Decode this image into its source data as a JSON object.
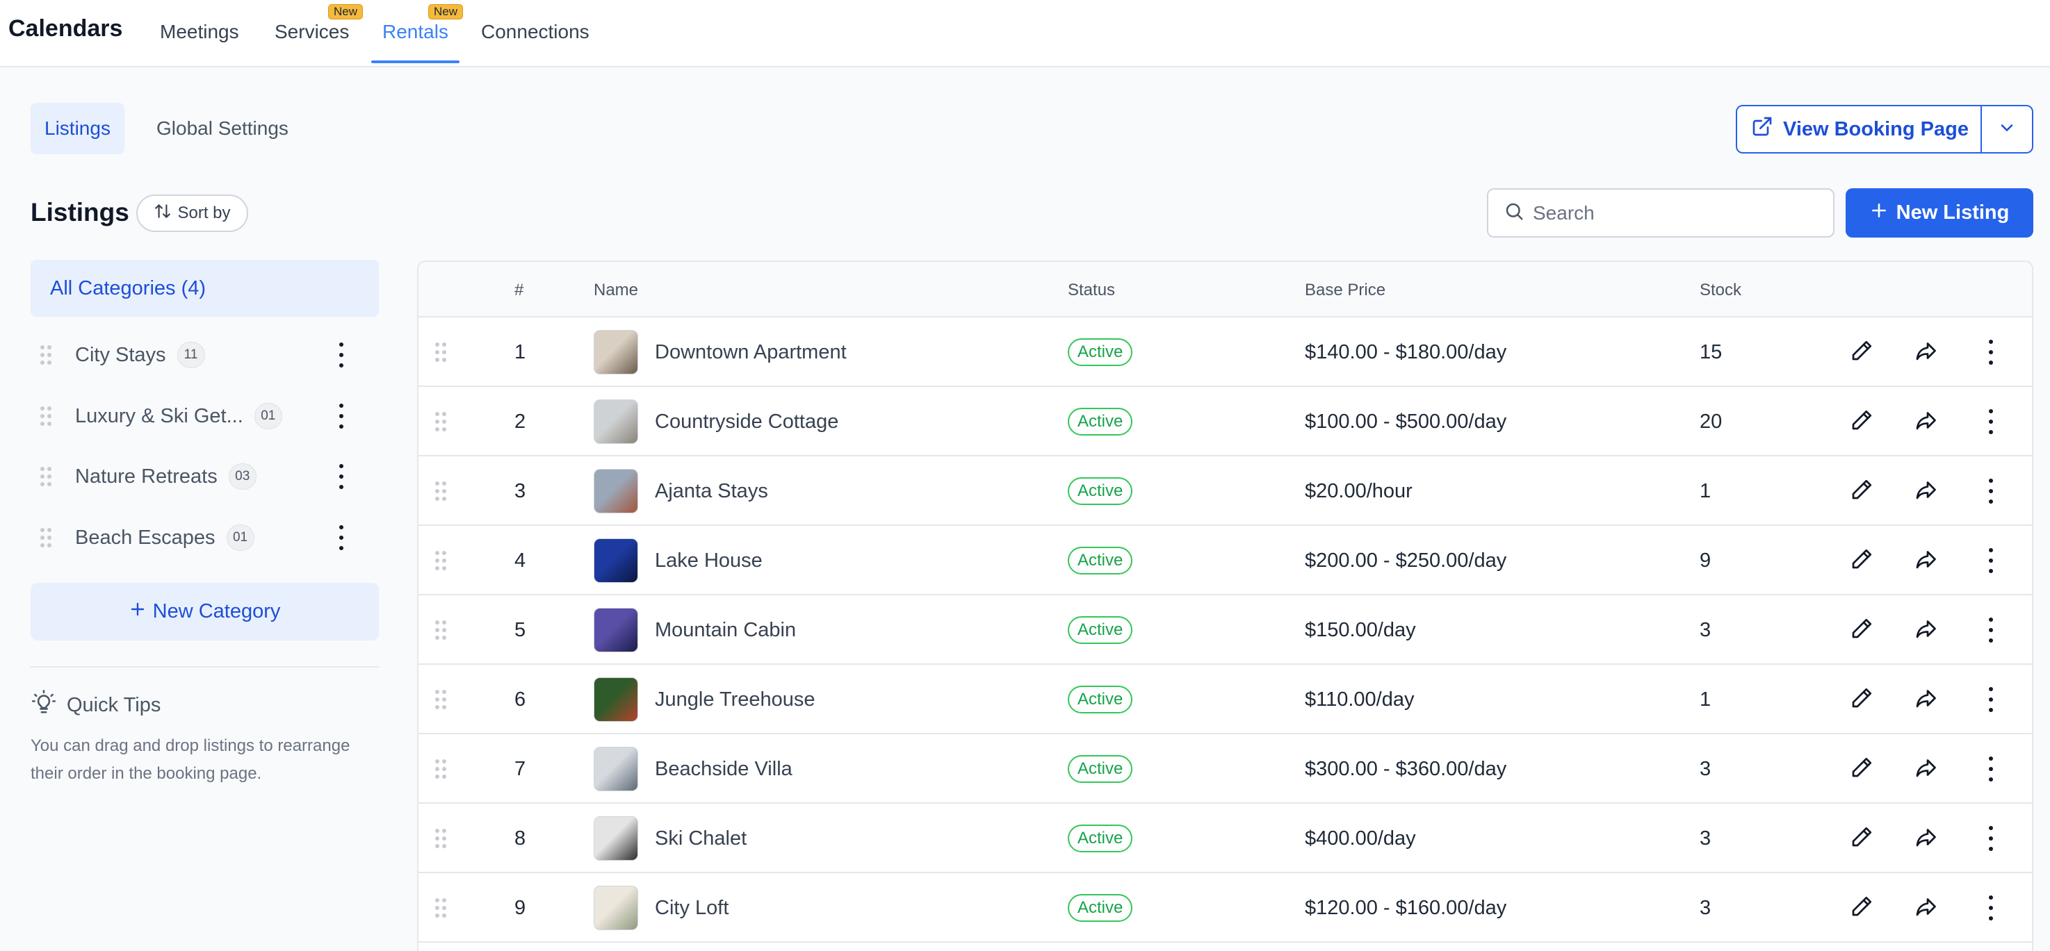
{
  "header": {
    "app_title": "Calendars",
    "tabs": [
      {
        "label": "Meetings",
        "badge": ""
      },
      {
        "label": "Services",
        "badge": "New"
      },
      {
        "label": "Rentals",
        "badge": "New",
        "active": true
      },
      {
        "label": "Connections",
        "badge": ""
      }
    ]
  },
  "subtabs": [
    "Listings",
    "Global Settings"
  ],
  "view_booking": {
    "label": "View Booking Page"
  },
  "listings": {
    "title": "Listings",
    "sort_label": "Sort by",
    "search_placeholder": "Search",
    "new_listing_label": "New Listing"
  },
  "categories": {
    "all_label": "All Categories (4)",
    "items": [
      {
        "name": "City Stays",
        "count": "11"
      },
      {
        "name": "Luxury & Ski Get...",
        "count": "01"
      },
      {
        "name": "Nature Retreats",
        "count": "03"
      },
      {
        "name": "Beach Escapes",
        "count": "01"
      }
    ],
    "new_category_label": "New Category"
  },
  "tips": {
    "title": "Quick Tips",
    "text": "You can drag and drop listings to rearrange their order in the booking page."
  },
  "table": {
    "columns": [
      "#",
      "Name",
      "Status",
      "Base Price",
      "Stock"
    ],
    "rows": [
      {
        "num": "1",
        "name": "Downtown Apartment",
        "status": "Active",
        "price": "$140.00 - $180.00/day",
        "stock": "15",
        "thumb_colors": [
          "#d9cfc2",
          "#6b5b4a"
        ]
      },
      {
        "num": "2",
        "name": "Countryside Cottage",
        "status": "Active",
        "price": "$100.00 - $500.00/day",
        "stock": "20",
        "thumb_colors": [
          "#cfd2d4",
          "#8a8479"
        ]
      },
      {
        "num": "3",
        "name": "Ajanta Stays",
        "status": "Active",
        "price": "$20.00/hour",
        "stock": "1",
        "thumb_colors": [
          "#9aa7b8",
          "#a4553a"
        ]
      },
      {
        "num": "4",
        "name": "Lake House",
        "status": "Active",
        "price": "$200.00 - $250.00/day",
        "stock": "9",
        "thumb_colors": [
          "#1d3aa0",
          "#0b1640"
        ]
      },
      {
        "num": "5",
        "name": "Mountain Cabin",
        "status": "Active",
        "price": "$150.00/day",
        "stock": "3",
        "thumb_colors": [
          "#5a4fa8",
          "#1a1d4a"
        ]
      },
      {
        "num": "6",
        "name": "Jungle Treehouse",
        "status": "Active",
        "price": "$110.00/day",
        "stock": "1",
        "thumb_colors": [
          "#2f5a2a",
          "#b4432a"
        ]
      },
      {
        "num": "7",
        "name": "Beachside Villa",
        "status": "Active",
        "price": "$300.00 - $360.00/day",
        "stock": "3",
        "thumb_colors": [
          "#d6dadf",
          "#5e6a78"
        ]
      },
      {
        "num": "8",
        "name": "Ski Chalet",
        "status": "Active",
        "price": "$400.00/day",
        "stock": "3",
        "thumb_colors": [
          "#e4e4e4",
          "#2c2c2c"
        ]
      },
      {
        "num": "9",
        "name": "City Loft",
        "status": "Active",
        "price": "$120.00 - $160.00/day",
        "stock": "3",
        "thumb_colors": [
          "#ece7dd",
          "#8f9a7e"
        ]
      }
    ]
  },
  "colors": {
    "accent": "#2563eb",
    "active_tab": "#3b82f6",
    "status_active": "#16a34a",
    "badge_new": "#f6b93b"
  }
}
